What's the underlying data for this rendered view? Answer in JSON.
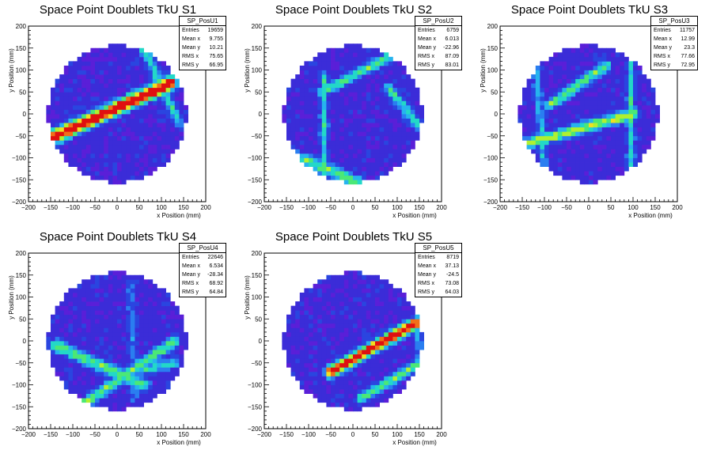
{
  "colors": {
    "palette": [
      "#ffffff",
      "#5a1fd8",
      "#3b2cd8",
      "#2a45e0",
      "#2a7ef0",
      "#26b4ee",
      "#23d8c8",
      "#4be876",
      "#b0f030",
      "#f0e020",
      "#f07018",
      "#e01010"
    ]
  },
  "chart_data": [
    {
      "type": "heatmap",
      "title": "Space Point Doublets TkU S1",
      "xlabel": "x Position (mm)",
      "ylabel": "y Position (mm)",
      "xlim": [
        -200,
        200
      ],
      "ylim": [
        -200,
        200
      ],
      "xticks": [
        "−200",
        "−150",
        "−100",
        "−50",
        "0",
        "50",
        "100",
        "150",
        "200"
      ],
      "yticks": [
        "200",
        "150",
        "100",
        "50",
        "0",
        "−50",
        "−100",
        "−150",
        "−200"
      ],
      "detector_radius": 157,
      "bin_size": 10,
      "tracks": [
        {
          "from": [
            -160,
            -60
          ],
          "to": [
            120,
            70
          ],
          "peak": 11,
          "width": 1.2
        },
        {
          "from": [
            -150,
            -55
          ],
          "to": [
            130,
            80
          ],
          "peak": 6,
          "width": 1.0
        },
        {
          "from": [
            60,
            150
          ],
          "to": [
            140,
            -20
          ],
          "peak": 5,
          "width": 0.9
        }
      ],
      "stats": {
        "name": "SP_PosU1",
        "rows": [
          {
            "label": "Entries",
            "value": "19659"
          },
          {
            "label": "Mean x",
            "value": "9.755"
          },
          {
            "label": "Mean y",
            "value": "10.21"
          },
          {
            "label": "RMS x",
            "value": "75.65"
          },
          {
            "label": "RMS y",
            "value": "66.95"
          }
        ]
      }
    },
    {
      "type": "heatmap",
      "title": "Space Point Doublets TkU S2",
      "xlabel": "x Position (mm)",
      "ylabel": "y Position (mm)",
      "xlim": [
        -200,
        200
      ],
      "ylim": [
        -200,
        200
      ],
      "xticks": [
        "−200",
        "−150",
        "−100",
        "−50",
        "0",
        "50",
        "100",
        "150",
        "200"
      ],
      "yticks": [
        "200",
        "150",
        "100",
        "50",
        "0",
        "−50",
        "−100",
        "−150",
        "−200"
      ],
      "detector_radius": 157,
      "bin_size": 10,
      "tracks": [
        {
          "from": [
            -140,
            -90
          ],
          "to": [
            20,
            -160
          ],
          "peak": 6,
          "width": 1.0
        },
        {
          "from": [
            -70,
            50
          ],
          "to": [
            120,
            150
          ],
          "peak": 6,
          "width": 0.9
        },
        {
          "from": [
            -65,
            90
          ],
          "to": [
            -65,
            -150
          ],
          "peak": 5,
          "width": 0.7
        },
        {
          "from": [
            80,
            60
          ],
          "to": [
            150,
            -30
          ],
          "peak": 5,
          "width": 1.0
        }
      ],
      "stats": {
        "name": "SP_PosU2",
        "rows": [
          {
            "label": "Entries",
            "value": "6759"
          },
          {
            "label": "Mean x",
            "value": "6.013"
          },
          {
            "label": "Mean y",
            "value": "-22.96"
          },
          {
            "label": "RMS x",
            "value": "87.09"
          },
          {
            "label": "RMS y",
            "value": "83.01"
          }
        ]
      }
    },
    {
      "type": "heatmap",
      "title": "Space Point Doublets TkU S3",
      "xlabel": "x Position (mm)",
      "ylabel": "y Position (mm)",
      "xlim": [
        -200,
        200
      ],
      "ylim": [
        -200,
        200
      ],
      "xticks": [
        "−200",
        "−150",
        "−100",
        "−50",
        "0",
        "50",
        "100",
        "150",
        "200"
      ],
      "yticks": [
        "200",
        "150",
        "100",
        "50",
        "0",
        "−50",
        "−100",
        "−150",
        "−200"
      ],
      "detector_radius": 157,
      "bin_size": 10,
      "tracks": [
        {
          "from": [
            -150,
            -70
          ],
          "to": [
            100,
            0
          ],
          "peak": 7,
          "width": 1.0
        },
        {
          "from": [
            -90,
            20
          ],
          "to": [
            40,
            110
          ],
          "peak": 6,
          "width": 0.9
        },
        {
          "from": [
            95,
            110
          ],
          "to": [
            95,
            -130
          ],
          "peak": 5,
          "width": 0.7
        },
        {
          "from": [
            -120,
            120
          ],
          "to": [
            -100,
            -120
          ],
          "peak": 4,
          "width": 0.8
        }
      ],
      "stats": {
        "name": "SP_PosU3",
        "rows": [
          {
            "label": "Entries",
            "value": "11757"
          },
          {
            "label": "Mean x",
            "value": "12.99"
          },
          {
            "label": "Mean y",
            "value": "23.3"
          },
          {
            "label": "RMS x",
            "value": "77.66"
          },
          {
            "label": "RMS y",
            "value": "72.95"
          }
        ]
      }
    },
    {
      "type": "heatmap",
      "title": "Space Point Doublets TkU S4",
      "xlabel": "x Position (mm)",
      "ylabel": "y Position (mm)",
      "xlim": [
        -200,
        200
      ],
      "ylim": [
        -200,
        200
      ],
      "xticks": [
        "−200",
        "−150",
        "−100",
        "−50",
        "0",
        "50",
        "100",
        "150",
        "200"
      ],
      "yticks": [
        "200",
        "150",
        "100",
        "50",
        "0",
        "−50",
        "−100",
        "−150",
        "−200"
      ],
      "detector_radius": 157,
      "bin_size": 10,
      "tracks": [
        {
          "from": [
            -140,
            -10
          ],
          "to": [
            60,
            -100
          ],
          "peak": 6,
          "width": 1.1
        },
        {
          "from": [
            -100,
            -160
          ],
          "to": [
            130,
            0
          ],
          "peak": 6,
          "width": 1.0
        },
        {
          "from": [
            30,
            -70
          ],
          "to": [
            130,
            -50
          ],
          "peak": 5,
          "width": 0.9
        },
        {
          "from": [
            30,
            130
          ],
          "to": [
            40,
            -130
          ],
          "peak": 3,
          "width": 0.8
        }
      ],
      "stats": {
        "name": "SP_PosU4",
        "rows": [
          {
            "label": "Entries",
            "value": "22646"
          },
          {
            "label": "Mean x",
            "value": "6.534"
          },
          {
            "label": "Mean y",
            "value": "-28.34"
          },
          {
            "label": "RMS x",
            "value": "68.92"
          },
          {
            "label": "RMS y",
            "value": "64.84"
          }
        ]
      }
    },
    {
      "type": "heatmap",
      "title": "Space Point Doublets TkU S5",
      "xlabel": "x Position (mm)",
      "ylabel": "y Position (mm)",
      "xlim": [
        -200,
        200
      ],
      "ylim": [
        -200,
        200
      ],
      "xticks": [
        "−200",
        "−150",
        "−100",
        "−50",
        "0",
        "50",
        "100",
        "150",
        "200"
      ],
      "yticks": [
        "200",
        "150",
        "100",
        "50",
        "0",
        "−50",
        "−100",
        "−150",
        "−200"
      ],
      "detector_radius": 157,
      "bin_size": 10,
      "tracks": [
        {
          "from": [
            -50,
            -70
          ],
          "to": [
            140,
            40
          ],
          "peak": 11,
          "width": 1.0
        },
        {
          "from": [
            20,
            -130
          ],
          "to": [
            150,
            -50
          ],
          "peak": 6,
          "width": 0.9
        },
        {
          "from": [
            150,
            20
          ],
          "to": [
            150,
            -60
          ],
          "peak": 4,
          "width": 0.7
        }
      ],
      "stats": {
        "name": "SP_PosU5",
        "rows": [
          {
            "label": "Entries",
            "value": "8719"
          },
          {
            "label": "Mean x",
            "value": "37.13"
          },
          {
            "label": "Mean y",
            "value": "-24.5"
          },
          {
            "label": "RMS x",
            "value": "73.08"
          },
          {
            "label": "RMS y",
            "value": "64.03"
          }
        ]
      }
    }
  ]
}
